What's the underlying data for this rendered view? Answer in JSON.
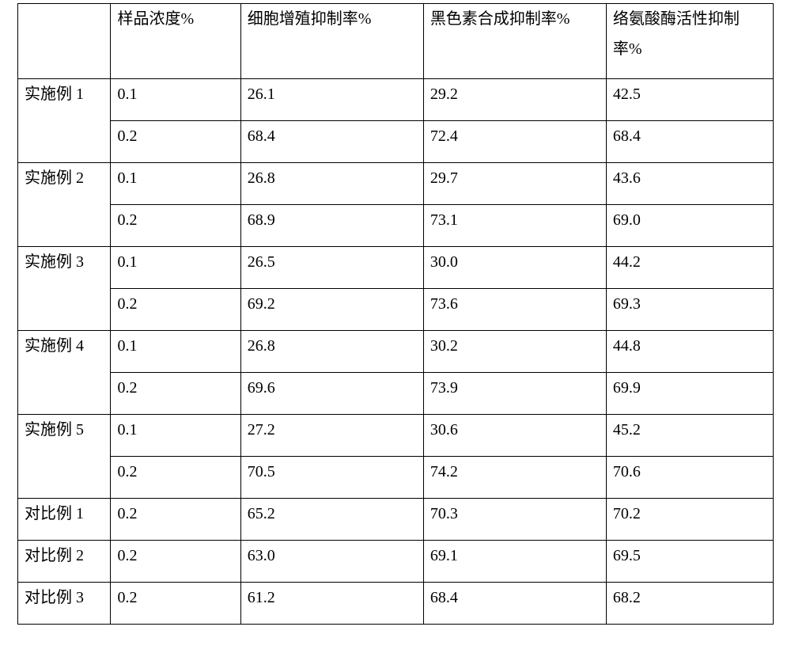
{
  "table": {
    "columns": [
      "",
      "样品浓度%",
      "细胞增殖抑制率%",
      "黑色素合成抑制率%",
      "络氨酸酶活性抑制率%"
    ],
    "groups": [
      {
        "label": "实施例 1",
        "rows": [
          [
            "0.1",
            "26.1",
            "29.2",
            "42.5"
          ],
          [
            "0.2",
            "68.4",
            "72.4",
            "68.4"
          ]
        ]
      },
      {
        "label": "实施例 2",
        "rows": [
          [
            "0.1",
            "26.8",
            "29.7",
            "43.6"
          ],
          [
            "0.2",
            "68.9",
            "73.1",
            "69.0"
          ]
        ]
      },
      {
        "label": "实施例 3",
        "rows": [
          [
            "0.1",
            "26.5",
            "30.0",
            "44.2"
          ],
          [
            "0.2",
            "69.2",
            "73.6",
            "69.3"
          ]
        ]
      },
      {
        "label": "实施例 4",
        "rows": [
          [
            "0.1",
            "26.8",
            "30.2",
            "44.8"
          ],
          [
            "0.2",
            "69.6",
            "73.9",
            "69.9"
          ]
        ]
      },
      {
        "label": "实施例 5",
        "rows": [
          [
            "0.1",
            "27.2",
            "30.6",
            "45.2"
          ],
          [
            "0.2",
            "70.5",
            "74.2",
            "70.6"
          ]
        ]
      },
      {
        "label": "对比例 1",
        "rows": [
          [
            "0.2",
            "65.2",
            "70.3",
            "70.2"
          ]
        ]
      },
      {
        "label": "对比例 2",
        "rows": [
          [
            "0.2",
            "63.0",
            "69.1",
            "69.5"
          ]
        ]
      },
      {
        "label": "对比例 3",
        "rows": [
          [
            "0.2",
            "61.2",
            "68.4",
            "68.2"
          ]
        ]
      }
    ],
    "col_widths_pct": [
      12.3,
      17.2,
      24.2,
      24.2,
      22.1
    ],
    "border_color": "#000000",
    "background_color": "#ffffff",
    "text_color": "#000000",
    "font_size_pt": 15,
    "font_family": "SimSun"
  }
}
